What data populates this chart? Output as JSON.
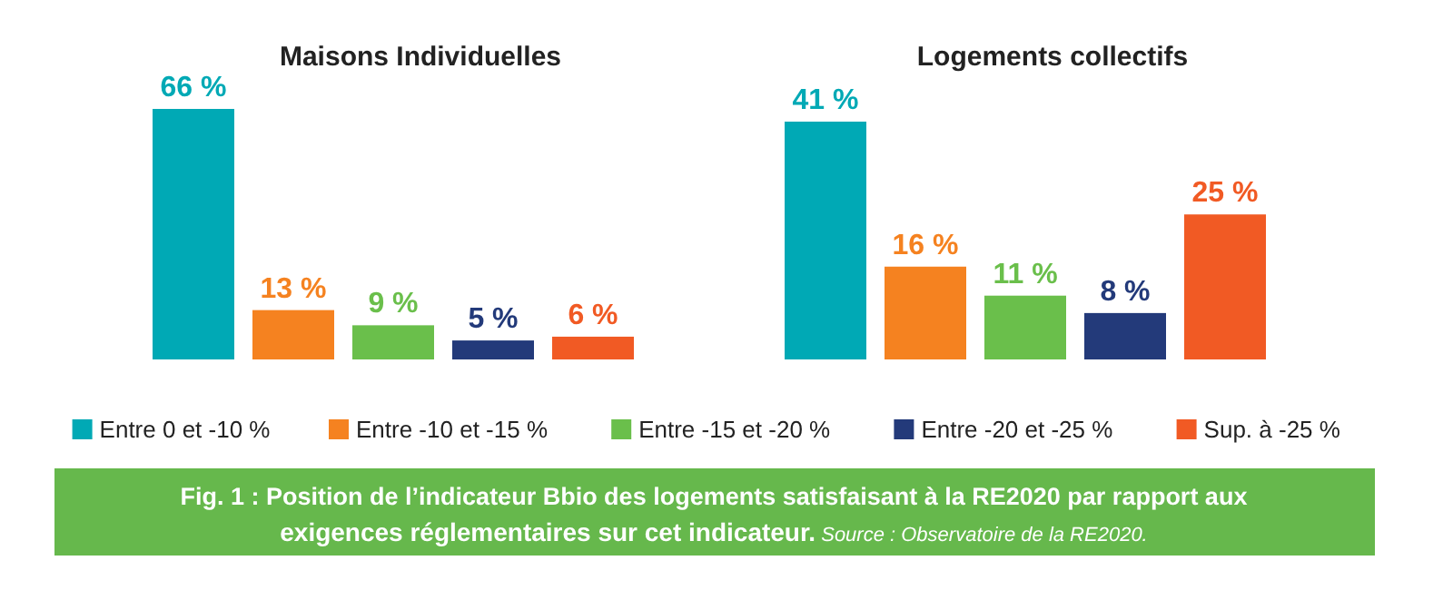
{
  "chart_data": [
    {
      "type": "bar",
      "title": "Maisons Individuelles",
      "categories": [
        null
      ],
      "legend": "bottom",
      "series": [
        {
          "name": "Entre 0 et -10 %",
          "color": "#00a9b5",
          "values": [
            66
          ],
          "value_labels": [
            "66 %"
          ]
        },
        {
          "name": "Entre -10 et -15 %",
          "color": "#f58220",
          "values": [
            13
          ],
          "value_labels": [
            "13 %"
          ]
        },
        {
          "name": "Entre -15 et -20 %",
          "color": "#6abf4b",
          "values": [
            9
          ],
          "value_labels": [
            "9 %"
          ]
        },
        {
          "name": "Entre -20 et -25 %",
          "color": "#233a7a",
          "values": [
            5
          ],
          "value_labels": [
            "5 %"
          ]
        },
        {
          "name": "Sup. à -25 %",
          "color": "#f15a24",
          "values": [
            6
          ],
          "value_labels": [
            "6 %"
          ]
        }
      ],
      "annotations": [
        "Fig. 1 : Position de l’indicateur Bbio des logements satisfaisant à la RE2020 par rapport aux exigences réglementaires sur cet indicateur.",
        "Source : Observatoire de la RE2020."
      ]
    },
    {
      "type": "bar",
      "title": "Logements collectifs",
      "categories": [
        null
      ],
      "series": [
        {
          "color": "#00a9b5",
          "values": [
            41
          ],
          "value_labels": [
            "41 %"
          ]
        },
        {
          "color": "#f58220",
          "values": [
            16
          ],
          "value_labels": [
            "16 %"
          ]
        },
        {
          "color": "#6abf4b",
          "values": [
            11
          ],
          "value_labels": [
            "11 %"
          ]
        },
        {
          "color": "#233a7a",
          "values": [
            8
          ],
          "value_labels": [
            "8 %"
          ]
        },
        {
          "color": "#f15a24",
          "values": [
            25
          ],
          "value_labels": [
            "25 %"
          ]
        }
      ]
    }
  ]
}
